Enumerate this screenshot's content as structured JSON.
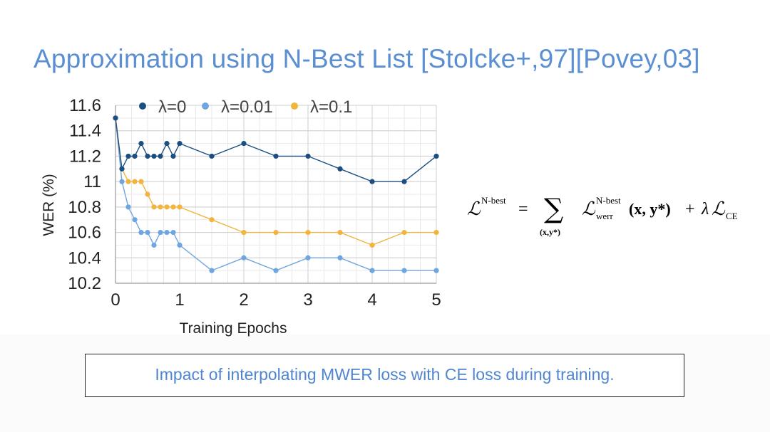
{
  "slide": {
    "title": "Approximation using N-Best List [Stolcke+,97][Povey,03]",
    "caption": "Impact of interpolating MWER loss with CE loss during training."
  },
  "formula": {
    "lhs_script": "ℒ",
    "lhs_sup": "N-best",
    "equals": "=",
    "sum": "∑",
    "sum_sub": "(x,y*)",
    "term_script": "ℒ",
    "term_sup": "N-best",
    "term_sub": "werr",
    "term_args": "(x, y*)",
    "plus": "+",
    "lambda": "λ",
    "ce_script": "ℒ",
    "ce_sub": "CE"
  },
  "chart_data": {
    "type": "line",
    "title": "",
    "xlabel": "Training Epochs",
    "ylabel": "WER (%)",
    "xlim": [
      0,
      5
    ],
    "ylim": [
      10.2,
      11.6
    ],
    "xticks": [
      0,
      1,
      2,
      3,
      4,
      5
    ],
    "xtick_labels": [
      "0",
      "1",
      "2",
      "3",
      "4",
      "5"
    ],
    "yticks": [
      10.2,
      10.4,
      10.6,
      10.8,
      11.0,
      11.2,
      11.4,
      11.6
    ],
    "ytick_labels": [
      "10.2",
      "10.4",
      "10.6",
      "10.8",
      "11",
      "11.2",
      "11.4",
      "11.6"
    ],
    "grid": true,
    "legend_position": "top",
    "series": [
      {
        "name": "λ=0",
        "color": "#1b4f82",
        "x": [
          0,
          0.1,
          0.2,
          0.3,
          0.4,
          0.5,
          0.6,
          0.7,
          0.8,
          0.9,
          1,
          1.5,
          2,
          2.5,
          3,
          3.5,
          4,
          4.5,
          5
        ],
        "y": [
          11.5,
          11.1,
          11.2,
          11.2,
          11.3,
          11.2,
          11.2,
          11.2,
          11.3,
          11.2,
          11.3,
          11.2,
          11.3,
          11.2,
          11.2,
          11.1,
          11.0,
          11.0,
          11.2
        ]
      },
      {
        "name": "λ=0.01",
        "color": "#6fa5e0",
        "x": [
          0,
          0.1,
          0.2,
          0.3,
          0.4,
          0.5,
          0.6,
          0.7,
          0.8,
          0.9,
          1,
          1.5,
          2,
          2.5,
          3,
          3.5,
          4,
          4.5,
          5
        ],
        "y": [
          11.5,
          11.0,
          10.8,
          10.7,
          10.6,
          10.6,
          10.5,
          10.6,
          10.6,
          10.6,
          10.5,
          10.3,
          10.4,
          10.3,
          10.4,
          10.4,
          10.3,
          10.3,
          10.3
        ]
      },
      {
        "name": "λ=0.1",
        "color": "#f2b43e",
        "x": [
          0,
          0.1,
          0.2,
          0.3,
          0.4,
          0.5,
          0.6,
          0.7,
          0.8,
          0.9,
          1,
          1.5,
          2,
          2.5,
          3,
          3.5,
          4,
          4.5,
          5
        ],
        "y": [
          11.5,
          11.1,
          11.0,
          11.0,
          11.0,
          10.9,
          10.8,
          10.8,
          10.8,
          10.8,
          10.8,
          10.7,
          10.6,
          10.6,
          10.6,
          10.6,
          10.5,
          10.6,
          10.6
        ]
      }
    ]
  }
}
